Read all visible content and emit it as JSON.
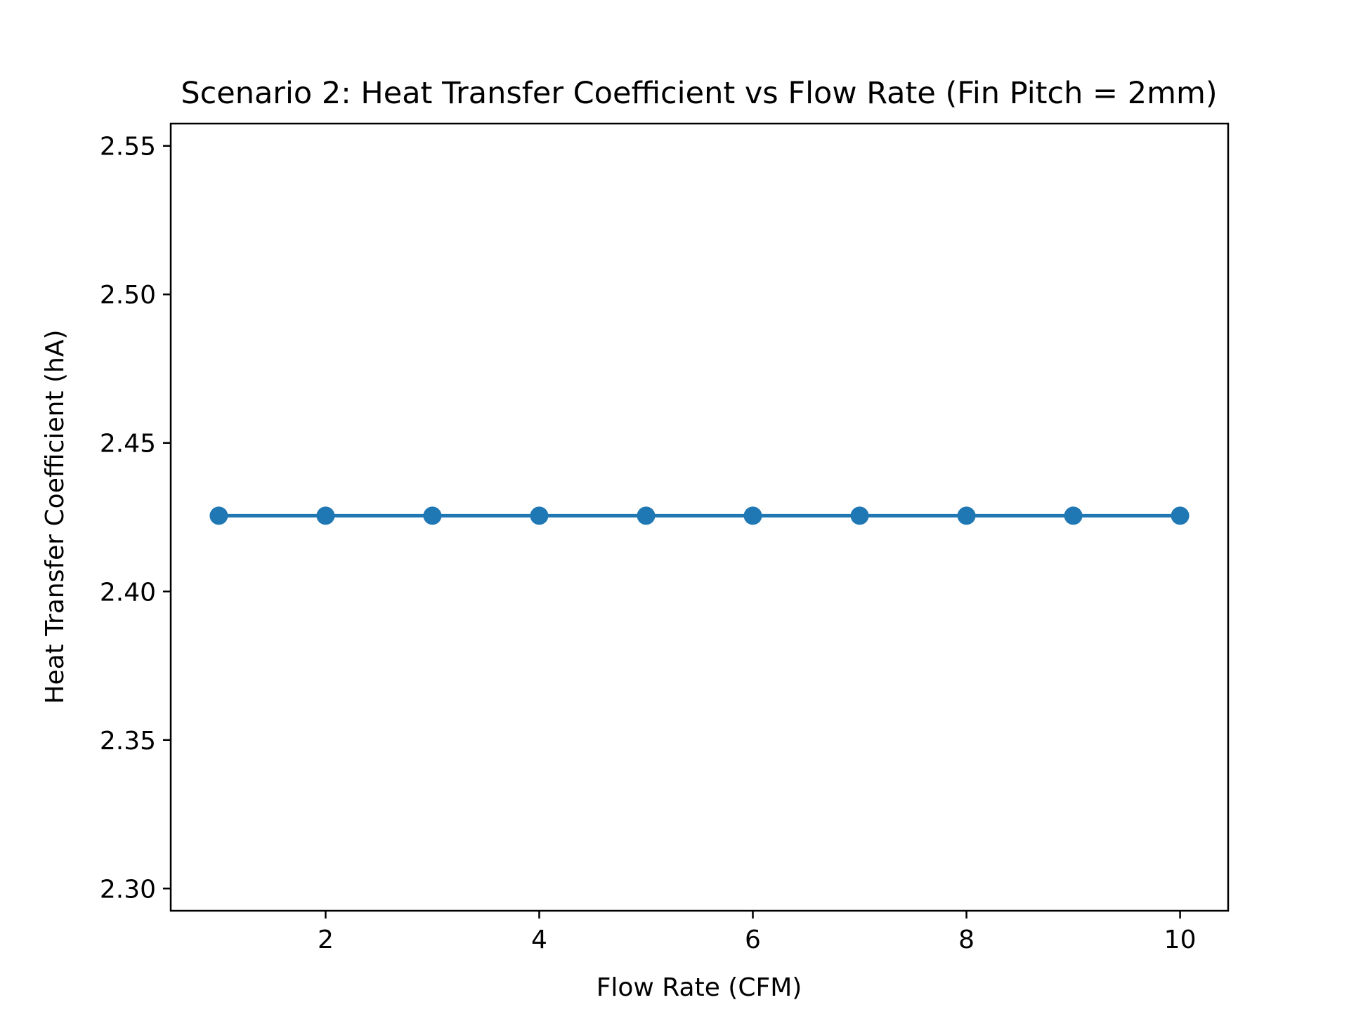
{
  "chart_data": {
    "type": "line",
    "title": "Scenario 2: Heat Transfer Coefficient vs Flow Rate (Fin Pitch = 2mm)",
    "xlabel": "Flow Rate (CFM)",
    "ylabel": "Heat Transfer Coefficient (hA)",
    "xlim": [
      0.55,
      10.45
    ],
    "ylim": [
      2.2925,
      2.5575
    ],
    "xticks": [
      2,
      4,
      6,
      8,
      10
    ],
    "xtick_labels": [
      "2",
      "4",
      "6",
      "8",
      "10"
    ],
    "yticks": [
      2.3,
      2.35,
      2.4,
      2.45,
      2.5,
      2.55
    ],
    "ytick_labels": [
      "2.30",
      "2.35",
      "2.40",
      "2.45",
      "2.50",
      "2.55"
    ],
    "grid": false,
    "legend": false,
    "series": [
      {
        "x": [
          1,
          2,
          3,
          4,
          5,
          6,
          7,
          8,
          9,
          10
        ],
        "y": [
          2.4255,
          2.4255,
          2.4255,
          2.4255,
          2.4255,
          2.4255,
          2.4255,
          2.4255,
          2.4255,
          2.4255
        ],
        "color": "#1f77b4",
        "marker": "circle"
      }
    ]
  }
}
